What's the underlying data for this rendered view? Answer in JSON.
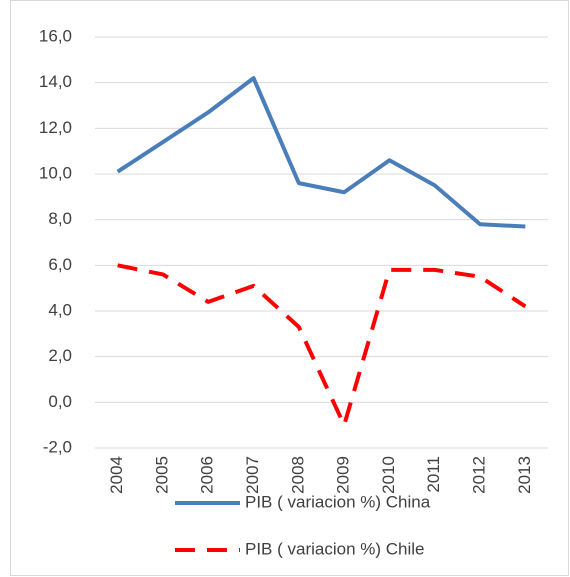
{
  "chart_data": {
    "type": "line",
    "categories": [
      "2004",
      "2005",
      "2006",
      "2007",
      "2008",
      "2009",
      "2010",
      "2011",
      "2012",
      "2013"
    ],
    "series": [
      {
        "name": "PIB ( variacion %) China",
        "color": "#4a7ebb",
        "dash": false,
        "values": [
          10.1,
          11.4,
          12.7,
          14.2,
          9.6,
          9.2,
          10.6,
          9.5,
          7.8,
          7.7
        ]
      },
      {
        "name": "PIB ( variacion %) Chile",
        "color": "#ff0000",
        "dash": true,
        "values": [
          6.0,
          5.6,
          4.4,
          5.1,
          3.3,
          -1.0,
          5.8,
          5.8,
          5.5,
          4.2
        ]
      }
    ],
    "ylim": [
      -2,
      16
    ],
    "yticks": [
      {
        "value": -2,
        "label": "-2,0"
      },
      {
        "value": 0,
        "label": "0,0"
      },
      {
        "value": 2,
        "label": "2,0"
      },
      {
        "value": 4,
        "label": "4,0"
      },
      {
        "value": 6,
        "label": "6,0"
      },
      {
        "value": 8,
        "label": "8,0"
      },
      {
        "value": 10,
        "label": "10,0"
      },
      {
        "value": 12,
        "label": "12,0"
      },
      {
        "value": 14,
        "label": "14,0"
      },
      {
        "value": 16,
        "label": "16,0"
      }
    ],
    "grid": true,
    "legend": "bottom"
  }
}
